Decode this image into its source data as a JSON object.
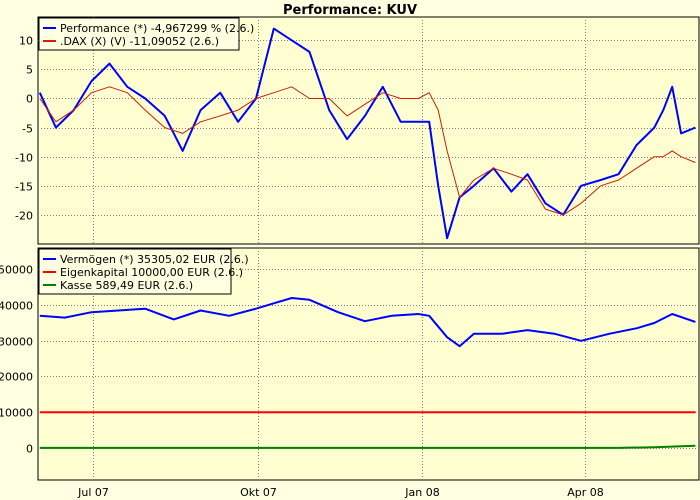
{
  "chart_data": [
    {
      "type": "line",
      "title": "Performance: KUV",
      "ylim": [
        -25,
        14
      ],
      "y_ticks": [
        10,
        5,
        0,
        -5,
        -10,
        -15,
        -20
      ],
      "grid": true,
      "legend_placement": "top-left",
      "x_ticks": [
        {
          "label": "Jul 07",
          "date": "2007-07-01"
        },
        {
          "label": "Okt 07",
          "date": "2007-10-01"
        },
        {
          "label": "Jan 08",
          "date": "2008-01-01"
        },
        {
          "label": "Apr 08",
          "date": "2008-04-01"
        }
      ],
      "x_range": [
        "2007-05-31",
        "2008-06-04"
      ],
      "series": [
        {
          "name": "Performance (*) -4,967299 % (2.6.)",
          "color": "#0000FF",
          "x": [
            "2007-06-01",
            "2007-06-10",
            "2007-06-20",
            "2007-06-30",
            "2007-07-10",
            "2007-07-20",
            "2007-07-30",
            "2007-08-10",
            "2007-08-20",
            "2007-08-30",
            "2007-09-10",
            "2007-09-20",
            "2007-09-30",
            "2007-10-10",
            "2007-10-20",
            "2007-10-30",
            "2007-11-10",
            "2007-11-20",
            "2007-11-30",
            "2007-12-10",
            "2007-12-20",
            "2007-12-30",
            "2008-01-05",
            "2008-01-10",
            "2008-01-15",
            "2008-01-22",
            "2008-01-30",
            "2008-02-10",
            "2008-02-20",
            "2008-02-29",
            "2008-03-10",
            "2008-03-20",
            "2008-03-30",
            "2008-04-10",
            "2008-04-20",
            "2008-04-30",
            "2008-05-10",
            "2008-05-15",
            "2008-05-20",
            "2008-05-25",
            "2008-06-02"
          ],
          "values": [
            1,
            -5,
            -2,
            3,
            6,
            2,
            0,
            -3,
            -9,
            -2,
            1,
            -4,
            0,
            12,
            10,
            8,
            -2,
            -7,
            -3,
            2,
            -4,
            -4,
            -4,
            -15,
            -24,
            -17,
            -15,
            -12,
            -16,
            -13,
            -18,
            -20,
            -15,
            -14,
            -13,
            -8,
            -5,
            -2,
            2,
            -6,
            -5
          ]
        },
        {
          "name": ".DAX (X) (V) -11,09052 (2.6.)",
          "color": "#D02000",
          "x": [
            "2007-06-01",
            "2007-06-10",
            "2007-06-20",
            "2007-06-30",
            "2007-07-10",
            "2007-07-20",
            "2007-07-30",
            "2007-08-10",
            "2007-08-20",
            "2007-08-30",
            "2007-09-10",
            "2007-09-20",
            "2007-09-30",
            "2007-10-10",
            "2007-10-20",
            "2007-10-30",
            "2007-11-10",
            "2007-11-20",
            "2007-11-30",
            "2007-12-10",
            "2007-12-20",
            "2007-12-30",
            "2008-01-05",
            "2008-01-10",
            "2008-01-15",
            "2008-01-22",
            "2008-01-30",
            "2008-02-10",
            "2008-02-20",
            "2008-02-29",
            "2008-03-10",
            "2008-03-20",
            "2008-03-30",
            "2008-04-10",
            "2008-04-20",
            "2008-04-30",
            "2008-05-10",
            "2008-05-15",
            "2008-05-20",
            "2008-05-25",
            "2008-06-02"
          ],
          "values": [
            0,
            -4,
            -2,
            1,
            2,
            1,
            -2,
            -5,
            -6,
            -4,
            -3,
            -2,
            0,
            1,
            2,
            0,
            0,
            -3,
            -1,
            1,
            0,
            0,
            1,
            -2,
            -9,
            -17,
            -14,
            -12,
            -13,
            -14,
            -19,
            -20,
            -18,
            -15,
            -14,
            -12,
            -10,
            -10,
            -9,
            -10,
            -11
          ]
        }
      ]
    },
    {
      "type": "line",
      "ylim": [
        -9000,
        56000
      ],
      "y_ticks": [
        50000,
        40000,
        30000,
        20000,
        10000,
        0
      ],
      "grid": true,
      "legend_placement": "top-left",
      "x_ticks": [
        {
          "label": "Jul 07",
          "date": "2007-07-01"
        },
        {
          "label": "Okt 07",
          "date": "2007-10-01"
        },
        {
          "label": "Jan 08",
          "date": "2008-01-01"
        },
        {
          "label": "Apr 08",
          "date": "2008-04-01"
        }
      ],
      "x_range": [
        "2007-05-31",
        "2008-06-04"
      ],
      "series": [
        {
          "name": "Vermögen (*) 35305,02 EUR (2.6.)",
          "color": "#0000FF",
          "x": [
            "2007-06-01",
            "2007-06-15",
            "2007-06-30",
            "2007-07-15",
            "2007-07-30",
            "2007-08-15",
            "2007-08-30",
            "2007-09-15",
            "2007-09-30",
            "2007-10-10",
            "2007-10-20",
            "2007-10-30",
            "2007-11-15",
            "2007-11-30",
            "2007-12-15",
            "2007-12-30",
            "2008-01-05",
            "2008-01-15",
            "2008-01-22",
            "2008-01-30",
            "2008-02-15",
            "2008-02-29",
            "2008-03-15",
            "2008-03-30",
            "2008-04-15",
            "2008-04-30",
            "2008-05-10",
            "2008-05-20",
            "2008-06-02"
          ],
          "values": [
            37000,
            36500,
            38000,
            38500,
            39000,
            36000,
            38500,
            37000,
            39000,
            40500,
            42000,
            41500,
            38000,
            35500,
            37000,
            37500,
            37000,
            31000,
            28500,
            32000,
            32000,
            33000,
            32000,
            30000,
            32000,
            33500,
            35000,
            37500,
            35300
          ]
        },
        {
          "name": "Eigenkapital 10000,00 EUR (2.6.)",
          "color": "#FF0000",
          "x": [
            "2007-06-01",
            "2008-06-02"
          ],
          "values": [
            10000,
            10000
          ]
        },
        {
          "name": "Kasse 589,49 EUR (2.6.)",
          "color": "#008000",
          "x": [
            "2007-06-01",
            "2008-04-20",
            "2008-05-10",
            "2008-06-02"
          ],
          "values": [
            0,
            0,
            200,
            589.49
          ]
        }
      ]
    }
  ]
}
